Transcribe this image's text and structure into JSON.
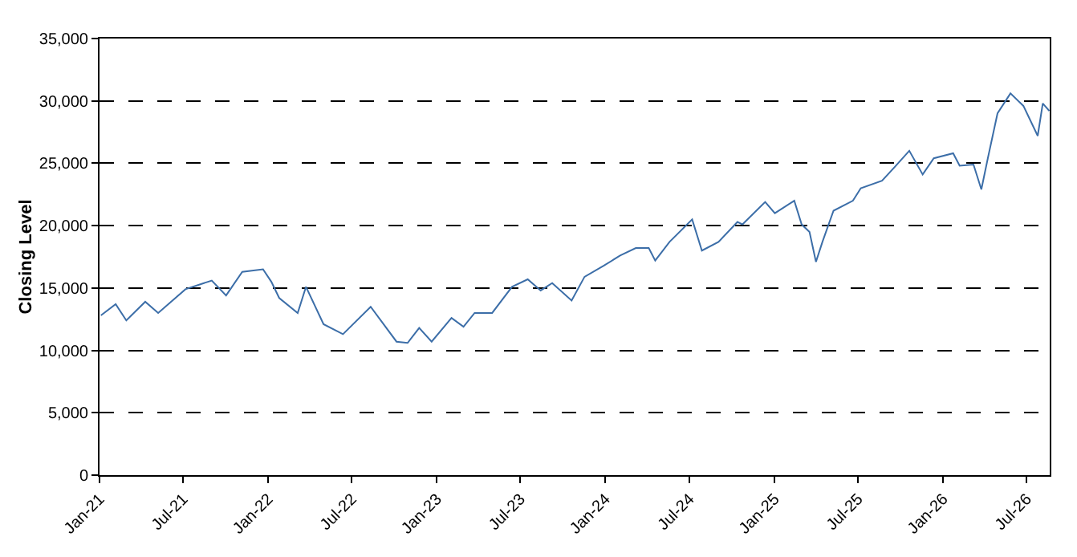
{
  "chart_data": {
    "type": "line",
    "ylabel": "Closing Level",
    "x": [
      "2021-01-04",
      "2021-02-05",
      "2021-02-28",
      "2021-04-10",
      "2021-05-08",
      "2021-07-06",
      "2021-09-01",
      "2021-10-02",
      "2021-11-06",
      "2021-12-21",
      "2022-01-08",
      "2022-01-25",
      "2022-03-06",
      "2022-03-24",
      "2022-05-01",
      "2022-06-12",
      "2022-08-11",
      "2022-10-06",
      "2022-10-30",
      "2022-11-24",
      "2022-12-21",
      "2023-02-02",
      "2023-02-28",
      "2023-03-24",
      "2023-05-01",
      "2023-06-13",
      "2023-07-17",
      "2023-08-14",
      "2023-09-08",
      "2023-10-20",
      "2023-11-17",
      "2023-12-29",
      "2024-02-02",
      "2024-03-07",
      "2024-04-04",
      "2024-04-18",
      "2024-05-19",
      "2024-07-07",
      "2024-07-28",
      "2024-09-02",
      "2024-10-13",
      "2024-10-24",
      "2024-12-12",
      "2025-01-02",
      "2025-02-13",
      "2025-03-01",
      "2025-03-18",
      "2025-04-01",
      "2025-04-15",
      "2025-05-09",
      "2025-06-20",
      "2025-07-07",
      "2025-08-22",
      "2025-09-16",
      "2025-10-20",
      "2025-11-18",
      "2025-12-12",
      "2026-01-23",
      "2026-02-06",
      "2026-03-08",
      "2026-03-25",
      "2026-04-08",
      "2026-04-29",
      "2026-05-27",
      "2026-06-24",
      "2026-07-25",
      "2026-08-05",
      "2026-08-19"
    ],
    "series": [
      {
        "color": "#3c6ea8",
        "values": [
          12800,
          13700,
          12400,
          13900,
          13000,
          14900,
          15600,
          14400,
          16300,
          16500,
          15500,
          14200,
          13000,
          15100,
          12100,
          11300,
          13500,
          10700,
          10600,
          11800,
          10700,
          12600,
          11900,
          13000,
          13000,
          15100,
          15700,
          14800,
          15400,
          14000,
          15900,
          16800,
          17600,
          18200,
          18200,
          17200,
          18700,
          20500,
          18000,
          18700,
          20300,
          20100,
          21900,
          21000,
          22000,
          20100,
          19500,
          17100,
          18700,
          21200,
          22000,
          23000,
          23600,
          24600,
          26000,
          24100,
          25400,
          25800,
          24800,
          24900,
          22900,
          25400,
          29000,
          30600,
          29600,
          27200,
          29800,
          29200
        ]
      }
    ],
    "xlim": [
      "2021-01-01",
      "2026-08-20"
    ],
    "xticks": [
      {
        "value": "2021-01-01",
        "label": "Jan-21"
      },
      {
        "value": "2021-07-01",
        "label": "Jul-21"
      },
      {
        "value": "2022-01-01",
        "label": "Jan-22"
      },
      {
        "value": "2022-07-01",
        "label": "Jul-22"
      },
      {
        "value": "2023-01-01",
        "label": "Jan-23"
      },
      {
        "value": "2023-07-01",
        "label": "Jul-23"
      },
      {
        "value": "2024-01-01",
        "label": "Jan-24"
      },
      {
        "value": "2024-07-01",
        "label": "Jul-24"
      },
      {
        "value": "2025-01-01",
        "label": "Jan-25"
      },
      {
        "value": "2025-07-01",
        "label": "Jul-25"
      },
      {
        "value": "2026-01-01",
        "label": "Jan-26"
      },
      {
        "value": "2026-07-01",
        "label": "Jul-26"
      }
    ],
    "ylim": [
      0,
      35000
    ],
    "yticks": [
      0,
      {
        "value": 5000,
        "label": "5,000"
      },
      {
        "value": 10000,
        "label": "10,000"
      },
      {
        "value": 15000,
        "label": "15,000"
      },
      {
        "value": 20000,
        "label": "20,000"
      },
      {
        "value": 25000,
        "label": "25,000"
      },
      {
        "value": 30000,
        "label": "30,000"
      },
      {
        "value": 35000,
        "label": "35,000"
      }
    ],
    "grid": "y",
    "line_style": "solid"
  }
}
